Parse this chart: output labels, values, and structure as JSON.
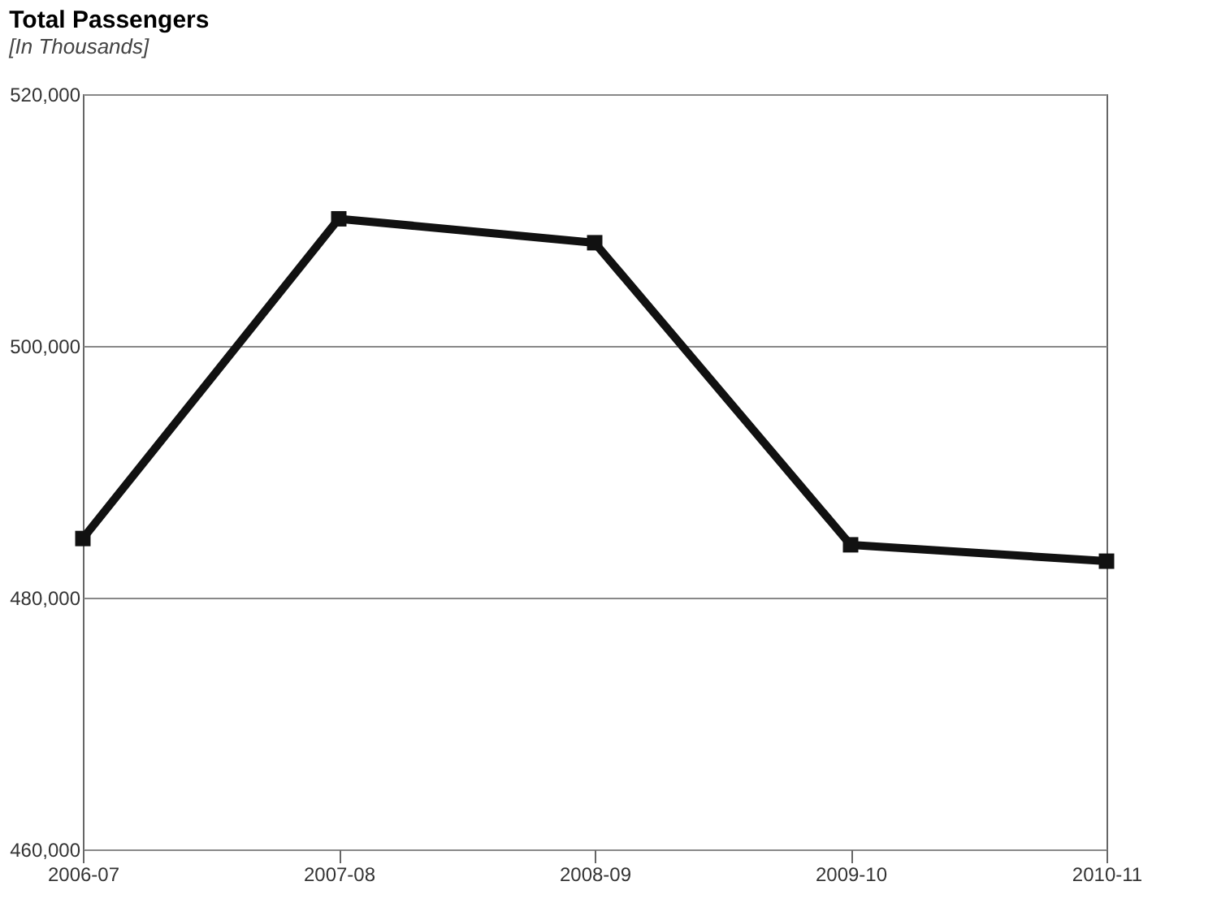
{
  "chart_data": {
    "type": "line",
    "title": "Total Passengers",
    "subtitle": "[In Thousands]",
    "categories": [
      "2006-07",
      "2007-08",
      "2008-09",
      "2009-10",
      "2010-11"
    ],
    "series": [
      {
        "color": "#111111",
        "values": [
          484700,
          510100,
          508200,
          484200,
          482900
        ]
      }
    ],
    "ylim": [
      460000,
      520000
    ],
    "yticks": [
      {
        "value": 460000,
        "label": "460,000"
      },
      {
        "value": 480000,
        "label": "480,000"
      },
      {
        "value": 500000,
        "label": "500,000"
      },
      {
        "value": 520000,
        "label": "520,000"
      }
    ],
    "grid": "y",
    "marker": "square",
    "line_style": "solid"
  }
}
